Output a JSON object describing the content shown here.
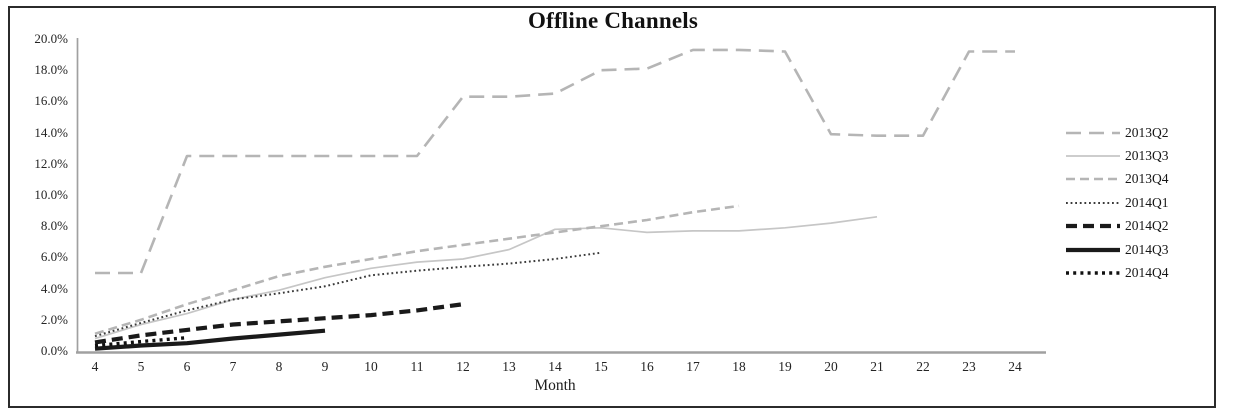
{
  "chart_data": {
    "type": "line",
    "title": "Offline Channels",
    "xlabel": "Month",
    "ylabel": "",
    "grid": false,
    "legend_position": "right",
    "xlim": [
      4,
      24
    ],
    "ylim": [
      0,
      20
    ],
    "x_ticks": [
      4,
      5,
      6,
      7,
      8,
      9,
      10,
      11,
      12,
      13,
      14,
      15,
      16,
      17,
      18,
      19,
      20,
      21,
      22,
      23,
      24
    ],
    "y_ticks": [
      "0.0%",
      "2.0%",
      "4.0%",
      "6.0%",
      "8.0%",
      "10.0%",
      "12.0%",
      "14.0%",
      "16.0%",
      "18.0%",
      "20.0%"
    ],
    "y_tick_step": 2,
    "axis_color": "#a0a0a0",
    "series": [
      {
        "name": "2013Q2",
        "x_start": 4,
        "color": "#b5b5b5",
        "dash": "15 8",
        "width": 2.6,
        "values": [
          5.0,
          5.0,
          12.5,
          12.5,
          12.5,
          12.5,
          12.5,
          12.5,
          16.3,
          16.3,
          16.5,
          18.0,
          18.1,
          19.3,
          19.3,
          19.2,
          13.9,
          13.8,
          13.8,
          19.2,
          19.2
        ]
      },
      {
        "name": "2013Q3",
        "x_start": 4,
        "color": "#c6c6c6",
        "dash": "",
        "width": 1.7,
        "values": [
          0.8,
          1.7,
          2.4,
          3.3,
          3.9,
          4.7,
          5.3,
          5.7,
          5.9,
          6.5,
          7.8,
          7.9,
          7.6,
          7.7,
          7.7,
          7.9,
          8.2,
          8.6
        ]
      },
      {
        "name": "2013Q4",
        "x_start": 4,
        "color": "#b5b5b5",
        "dash": "9 5",
        "width": 2.6,
        "values": [
          1.1,
          2.0,
          3.0,
          3.9,
          4.8,
          5.4,
          5.9,
          6.4,
          6.8,
          7.2,
          7.6,
          8.0,
          8.4,
          8.9,
          9.3
        ]
      },
      {
        "name": "2014Q1",
        "x_start": 4,
        "color": "#3a3a3a",
        "dash": "1.8 2.8",
        "width": 2,
        "values": [
          0.95,
          1.8,
          2.6,
          3.3,
          3.7,
          4.15,
          4.85,
          5.15,
          5.4,
          5.6,
          5.9,
          6.3
        ]
      },
      {
        "name": "2014Q2",
        "x_start": 4,
        "color": "#1a1a1a",
        "dash": "11 6",
        "width": 4.2,
        "values": [
          0.55,
          1.0,
          1.35,
          1.7,
          1.9,
          2.1,
          2.3,
          2.6,
          3.0
        ]
      },
      {
        "name": "2014Q3",
        "x_start": 4,
        "color": "#1a1a1a",
        "dash": "",
        "width": 4.2,
        "values": [
          0.15,
          0.35,
          0.5,
          0.8,
          1.05,
          1.3
        ]
      },
      {
        "name": "2014Q4",
        "x_start": 4,
        "color": "#101010",
        "dash": "3 4.2",
        "width": 3.4,
        "values": [
          0.35,
          0.6,
          0.85
        ]
      }
    ]
  }
}
